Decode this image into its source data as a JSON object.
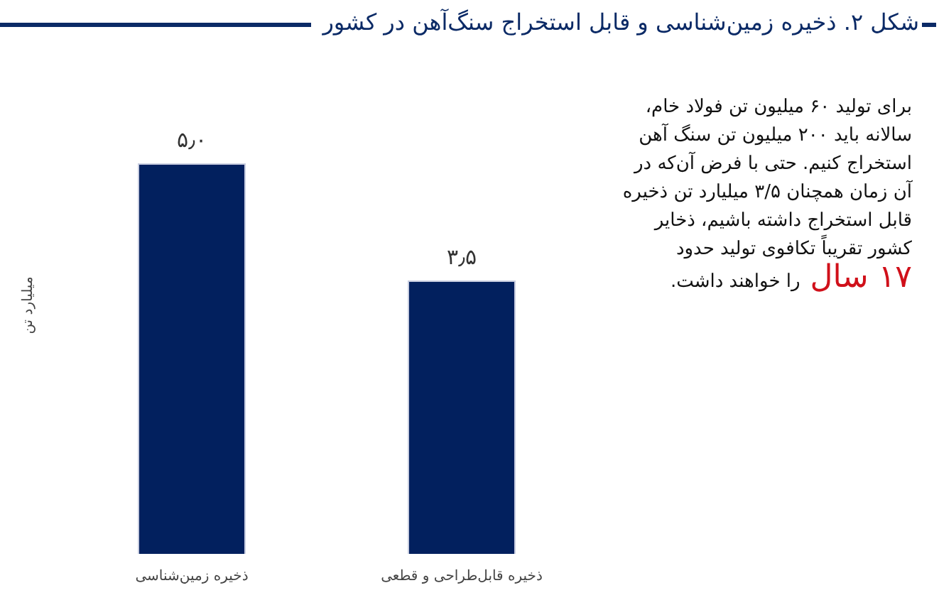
{
  "chart_data": {
    "type": "bar",
    "title": "شکل ۲. ذخیره زمین‌شناسی و قابل استخراج سنگ‌آهن در کشور",
    "ylabel": "میلیارد تن",
    "categories": [
      "ذخیره زمین‌شناسی",
      "ذخیره قابل‌طراحی و قطعی"
    ],
    "values": [
      5.0,
      3.5
    ],
    "value_labels": [
      "۵٫۰",
      "۳٫۵"
    ],
    "color": "#02205e",
    "tick_labels": "x",
    "annotations": [
      "برای تولید ۶۰ میلیون تن فولاد خام، سالانه باید ۲۰۰ میلیون تن سنگ آهن استخراج کنیم. حتی با فرض آن‌که در آن زمان همچنان ۳/۵ میلیارد تن ذخیره قابل استخراج داشته باشیم، ذخایر کشور تقریباً تکافوی تولید حدود",
      "۱۷ سال",
      "را خواهند داشت."
    ],
    "grid": false,
    "legend": false
  }
}
